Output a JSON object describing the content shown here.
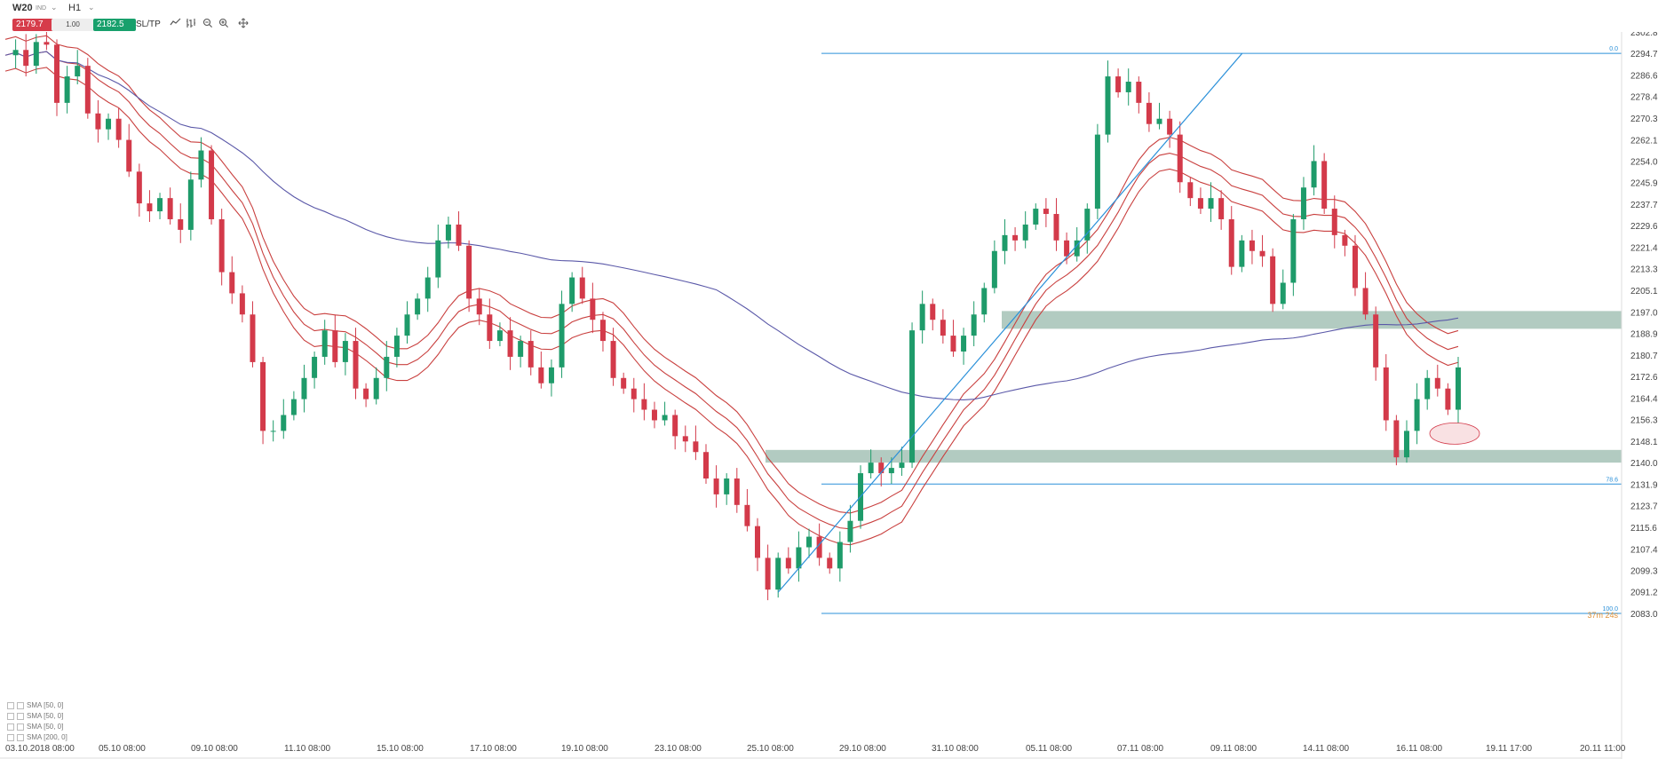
{
  "toolbar": {
    "symbol": "W20",
    "symbol_sub": "IND",
    "timeframe": "H1",
    "sell_price": "2179.7",
    "volume": "1.00",
    "buy_price": "2182.5",
    "sltp_label": "SL/TP",
    "icons": [
      "line-chart-icon",
      "bar-chart-icon",
      "zoom-out-icon",
      "zoom-in-icon",
      "crosshair-icon"
    ]
  },
  "indicators": [
    {
      "label": "SMA [50, 0]"
    },
    {
      "label": "SMA [50, 0]"
    },
    {
      "label": "SMA [50, 0]"
    },
    {
      "label": "SMA [200, 0]"
    }
  ],
  "colors": {
    "bull": "#1e9b6a",
    "bear": "#d33a4a",
    "sma50": "#c9403f",
    "sma200": "#5a58a8",
    "fib": "#2b90d9",
    "zone": "#7fa997"
  },
  "chart_data": {
    "type": "candlestick",
    "price_axis_labels": [
      "2302.8",
      "2294.7",
      "2286.6",
      "2278.4",
      "2270.3",
      "2262.1",
      "2254.0",
      "2245.9",
      "2237.7",
      "2229.6",
      "2221.4",
      "2213.3",
      "2205.1",
      "2197.0",
      "2188.9",
      "2180.7",
      "2172.6",
      "2164.4",
      "2156.3",
      "2148.1",
      "2140.0",
      "2131.9",
      "2123.7",
      "2115.6",
      "2107.4",
      "2099.3",
      "2091.2",
      "2083.0"
    ],
    "ylim": [
      2083.0,
      2302.8
    ],
    "time_axis_labels": [
      "03.10.2018 08:00",
      "05.10 08:00",
      "09.10 08:00",
      "11.10 08:00",
      "15.10 08:00",
      "17.10 08:00",
      "19.10 08:00",
      "23.10 08:00",
      "25.10 08:00",
      "29.10 08:00",
      "31.10 08:00",
      "05.11 08:00",
      "07.11 08:00",
      "09.11 08:00",
      "14.11 08:00",
      "16.11 08:00",
      "19.11 17:00",
      "20.11 11:00"
    ],
    "fibonacci": [
      {
        "level": "0.0",
        "price": 2294.7
      },
      {
        "level": "78.6",
        "price": 2131.9
      },
      {
        "level": "100.0",
        "price": 2083.0
      }
    ],
    "support_resistance_zones": [
      {
        "low": 2190.6,
        "high": 2197.3
      },
      {
        "low": 2140.0,
        "high": 2144.8
      }
    ],
    "countdown_label": "37m 24s",
    "price_path": [
      2294,
      2296,
      2290,
      2299,
      2298,
      2276,
      2286,
      2290,
      2272,
      2266,
      2270,
      2262,
      2250,
      2238,
      2235,
      2240,
      2232,
      2228,
      2247,
      2258,
      2232,
      2212,
      2204,
      2196,
      2178,
      2152,
      2152,
      2158,
      2164,
      2172,
      2180,
      2190,
      2178,
      2186,
      2168,
      2164,
      2172,
      2180,
      2188,
      2196,
      2202,
      2210,
      2224,
      2230,
      2222,
      2202,
      2196,
      2186,
      2190,
      2180,
      2186,
      2176,
      2170,
      2176,
      2200,
      2210,
      2202,
      2194,
      2186,
      2172,
      2168,
      2164,
      2160,
      2156,
      2158,
      2150,
      2148,
      2144,
      2134,
      2128,
      2134,
      2124,
      2116,
      2104,
      2092,
      2104,
      2100,
      2108,
      2112,
      2104,
      2100,
      2110,
      2118,
      2136,
      2140,
      2136,
      2138,
      2140,
      2190,
      2200,
      2194,
      2188,
      2182,
      2188,
      2196,
      2206,
      2220,
      2226,
      2224,
      2230,
      2236,
      2234,
      2224,
      2218,
      2224,
      2236,
      2264,
      2286,
      2280,
      2284,
      2276,
      2268,
      2270,
      2264,
      2246,
      2240,
      2236,
      2240,
      2232,
      2214,
      2224,
      2220,
      2218,
      2200,
      2208,
      2232,
      2244,
      2254,
      2236,
      2226,
      2222,
      2206,
      2196,
      2176,
      2156,
      2142,
      2152,
      2164,
      2172,
      2168,
      2160,
      2176
    ]
  }
}
